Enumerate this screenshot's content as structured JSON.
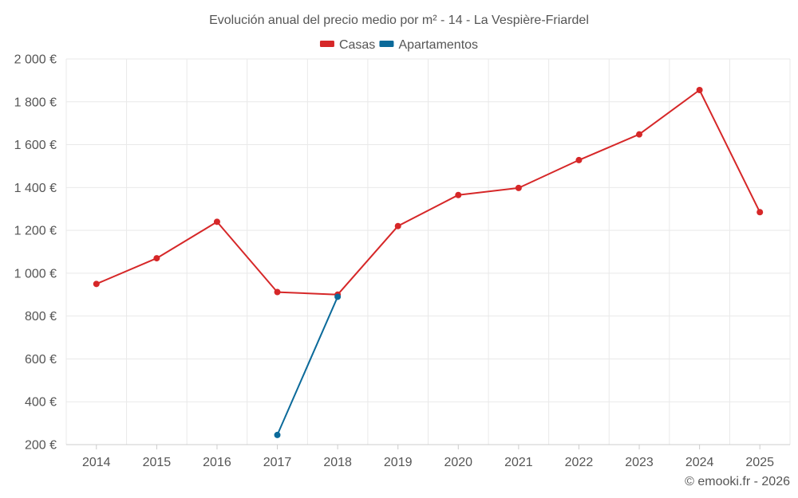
{
  "chart_data": {
    "type": "line",
    "title": "Evolución anual del precio medio por m² - 14 - La Vespière-Friardel",
    "categories": [
      "2014",
      "2015",
      "2016",
      "2017",
      "2018",
      "2019",
      "2020",
      "2021",
      "2022",
      "2023",
      "2024",
      "2025"
    ],
    "series": [
      {
        "name": "Casas",
        "color": "#d62728",
        "values": [
          950,
          1070,
          1240,
          912,
          900,
          1220,
          1365,
          1398,
          1528,
          1648,
          1855,
          1285
        ]
      },
      {
        "name": "Apartamentos",
        "color": "#0b6a9a",
        "values": [
          null,
          null,
          null,
          245,
          890,
          null,
          null,
          null,
          null,
          null,
          null,
          null
        ]
      }
    ],
    "ylim": [
      200,
      2000
    ],
    "yticks": [
      200,
      400,
      600,
      800,
      1000,
      1200,
      1400,
      1600,
      1800,
      2000
    ],
    "ytick_labels": [
      "200 €",
      "400 €",
      "600 €",
      "800 €",
      "1 000 €",
      "1 200 €",
      "1 400 €",
      "1 600 €",
      "1 800 €",
      "2 000 €"
    ],
    "xlabel": "",
    "ylabel": "",
    "grid": true,
    "legend": "top-center"
  },
  "credit": "© emooki.fr - 2026"
}
